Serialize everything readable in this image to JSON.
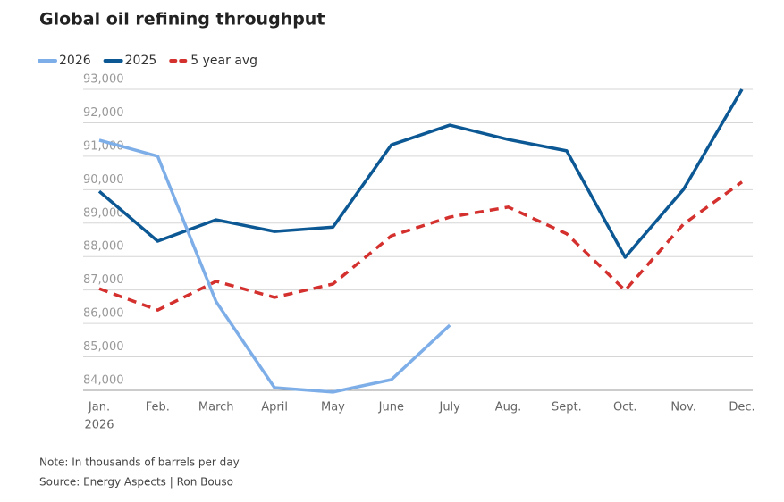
{
  "chart_data": {
    "type": "line",
    "title": "Global oil refining throughput",
    "categories": [
      "Jan.",
      "Feb.",
      "March",
      "April",
      "May",
      "June",
      "July",
      "Aug.",
      "Sept.",
      "Oct.",
      "Nov.",
      "Dec."
    ],
    "first_category_year": "2026",
    "series": [
      {
        "name": "2026",
        "color": "#7eaee8",
        "dashed": false,
        "values": [
          91480,
          91000,
          86650,
          84080,
          83950,
          84320,
          85950,
          null,
          null,
          null,
          null,
          null
        ]
      },
      {
        "name": "2025",
        "color": "#0b5894",
        "dashed": false,
        "values": [
          89950,
          88460,
          89100,
          88750,
          88880,
          91340,
          91930,
          91500,
          91160,
          87980,
          90010,
          93000
        ]
      },
      {
        "name": "5 year avg",
        "color": "#d3302e",
        "dashed": true,
        "values": [
          87040,
          86400,
          87260,
          86780,
          87180,
          88620,
          89180,
          89480,
          88680,
          86990,
          88970,
          90230
        ]
      }
    ],
    "ylim": [
      84000,
      93000
    ],
    "yticks": [
      {
        "value": 84000,
        "label": "84,000"
      },
      {
        "value": 85000,
        "label": "85,000"
      },
      {
        "value": 86000,
        "label": "86,000"
      },
      {
        "value": 87000,
        "label": "87,000"
      },
      {
        "value": 88000,
        "label": "88,000"
      },
      {
        "value": 89000,
        "label": "89,000"
      },
      {
        "value": 90000,
        "label": "90,000"
      },
      {
        "value": 91000,
        "label": "91,000"
      },
      {
        "value": 92000,
        "label": "92,000"
      },
      {
        "value": 93000,
        "label": "93,000"
      }
    ],
    "grid": true,
    "note": "Note: In thousands of barrels per day",
    "source": "Source: Energy Aspects | Ron Bouso"
  }
}
